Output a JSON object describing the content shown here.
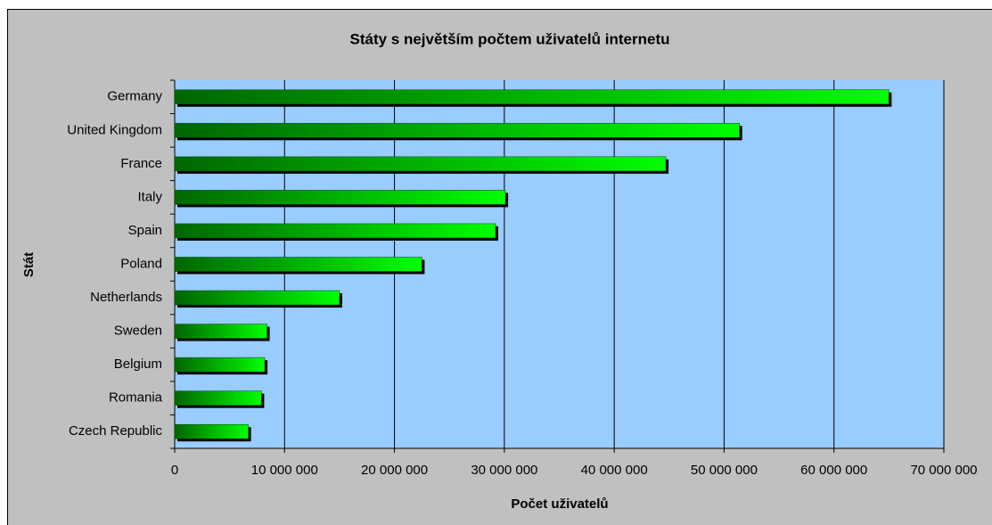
{
  "chart_data": {
    "type": "hbar",
    "title": "Státy s největším počtem uživatelů internetu",
    "x_label": "Počet uživatelů",
    "y_label": "Stát",
    "categories": [
      "Germany",
      "United Kingdom",
      "France",
      "Italy",
      "Spain",
      "Poland",
      "Netherlands",
      "Sweden",
      "Belgium",
      "Romania",
      "Czech Republic"
    ],
    "values": [
      65000000,
      51400000,
      44700000,
      30100000,
      29200000,
      22500000,
      15000000,
      8400000,
      8200000,
      7900000,
      6700000
    ],
    "color": "#00ff00",
    "xlim": [
      0,
      70000000
    ],
    "xticks": [
      0,
      {
        "value": 10000000,
        "label": "10 000 000"
      },
      {
        "value": 20000000,
        "label": "20 000 000"
      },
      {
        "value": 30000000,
        "label": "30 000 000"
      },
      {
        "value": 40000000,
        "label": "40 000 000"
      },
      {
        "value": 50000000,
        "label": "50 000 000"
      },
      {
        "value": 60000000,
        "label": "60 000 000"
      },
      {
        "value": 70000000,
        "label": "70 000 000"
      }
    ],
    "grid": true
  }
}
